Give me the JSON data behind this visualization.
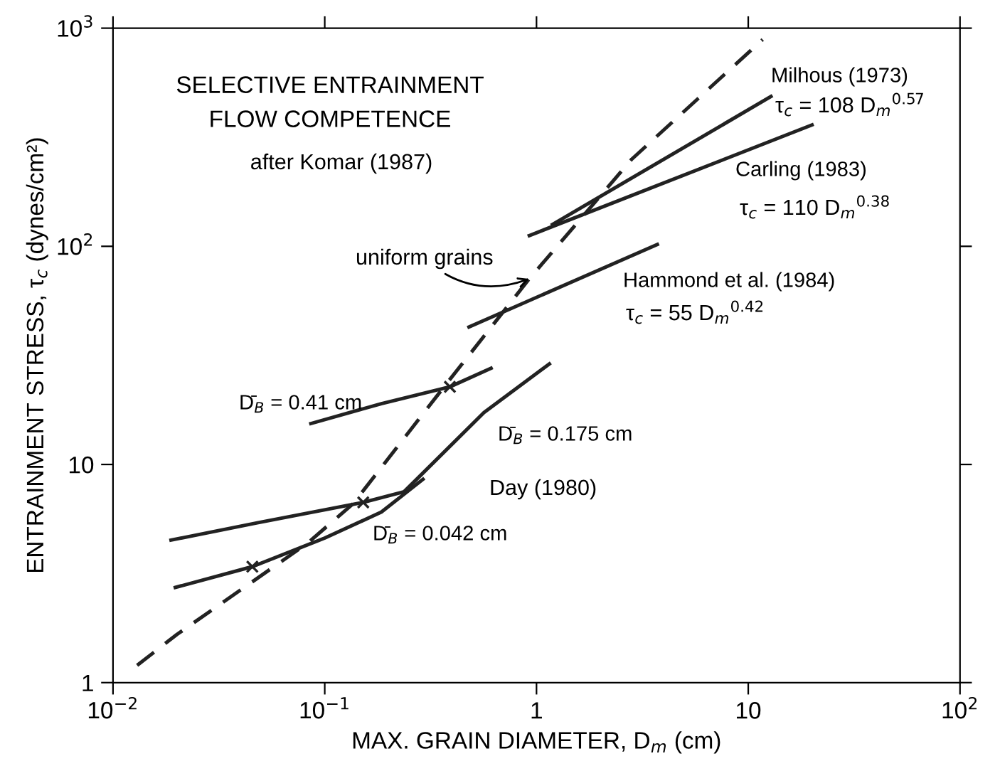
{
  "chart_data": {
    "type": "line",
    "title": "SELECTIVE ENTRAINMENT\nFLOW COMPETENCE",
    "subtitle": "after Komar (1987)",
    "xlabel": "MAX. GRAIN DIAMETER, D$_{m}$ (cm)",
    "ylabel": "ENTRAINMENT STRESS, τ$_{c}$ (dynes/cm²)",
    "log": "xy",
    "xlim": [
      0.01,
      100
    ],
    "ylim": [
      1,
      1000
    ],
    "xticks": [
      {
        "value": 0.01,
        "label": "10$^{−2}$"
      },
      {
        "value": 0.1,
        "label": "10$^{−1}$"
      },
      1,
      10,
      {
        "value": 100,
        "label": "10$^{2}$"
      }
    ],
    "yticks": [
      1,
      10,
      {
        "value": 100,
        "label": "10$^{2}$"
      },
      {
        "value": 1000,
        "label": "10$^{3}$"
      }
    ],
    "grid": false,
    "legend": false,
    "series": [
      {
        "name": "uniform grains",
        "color": "#222222",
        "line_style": "dashed",
        "x": [
          0.013,
          0.02,
          0.083,
          0.136,
          0.366,
          0.925,
          2.82,
          11.7
        ],
        "values": [
          1.2,
          1.66,
          4.36,
          6.6,
          22.7,
          71,
          251,
          887
        ]
      },
      {
        "name": "Milhous (1973)",
        "color": "#222222",
        "line_style": "solid",
        "x": [
          1.19,
          12.8
        ],
        "values": [
          126,
          486
        ]
      },
      {
        "name": "Carling (1983)",
        "color": "#222222",
        "line_style": "solid",
        "x": [
          0.925,
          20
        ],
        "values": [
          112,
          360
        ]
      },
      {
        "name": "Hammond et al. (1984)",
        "color": "#222222",
        "line_style": "solid",
        "x": [
          0.48,
          3.72
        ],
        "values": [
          42.7,
          102
        ]
      },
      {
        "name": "D̄$_{B}$ = 0.41 cm",
        "color": "#222222",
        "line_style": "solid",
        "x": [
          0.086,
          0.185,
          0.39,
          0.61
        ],
        "values": [
          15.4,
          19,
          22.7,
          27.6
        ]
      },
      {
        "name": "D̄$_{B}$ = 0.175 cm",
        "color": "#222222",
        "line_style": "solid",
        "x": [
          0.0188,
          0.048,
          0.152,
          0.237,
          0.565,
          1.15
        ],
        "values": [
          4.5,
          5.4,
          6.7,
          7.5,
          17.3,
          28.9
        ]
      },
      {
        "name": "D̄$_{B}$ = 0.042 cm",
        "color": "#222222",
        "line_style": "solid",
        "x": [
          0.0197,
          0.0455,
          0.1,
          0.185,
          0.291
        ],
        "values": [
          2.73,
          3.4,
          4.6,
          6.05,
          8.55
        ]
      },
      {
        "type": "scatter",
        "marker": "cross",
        "color": "#222222",
        "x": [
          0.39,
          0.152,
          0.0455
        ],
        "values": [
          22.7,
          6.7,
          3.4
        ]
      }
    ],
    "annotations": [
      "τ$_{c}$ = 108 D$_{m}$$^{0.57}$",
      "τ$_{c}$ = 110 D$_{m}$$^{0.38}$",
      "τ$_{c}$ = 55 D$_{m}$$^{0.42}$",
      "Day (1980)"
    ]
  }
}
